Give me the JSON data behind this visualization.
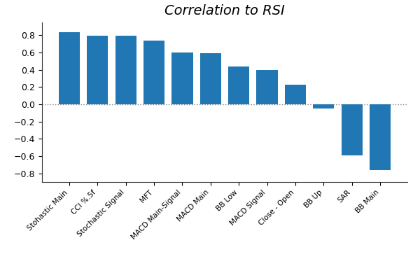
{
  "categories": [
    "Stohastic Main",
    "CCI %.5f",
    "Stochastic Signal",
    "MFT",
    "MACD Main-Signal",
    "MACD Main",
    "BB Low",
    "MACD Signal",
    "Close - Open",
    "BB Up",
    "SAR",
    "BB Main"
  ],
  "values": [
    0.835,
    0.795,
    0.795,
    0.735,
    0.6,
    0.59,
    0.435,
    0.4,
    0.23,
    -0.045,
    -0.595,
    -0.76
  ],
  "bar_color": "#2077b4",
  "title": "Correlation to RSI",
  "title_fontsize": 14,
  "title_style": "italic",
  "ylim": [
    -0.9,
    0.95
  ],
  "yticks": [
    -0.8,
    -0.6,
    -0.4,
    -0.2,
    0.0,
    0.2,
    0.4,
    0.6,
    0.8
  ],
  "background_color": "#ffffff",
  "figsize": [
    6.0,
    4.0
  ],
  "dpi": 100,
  "xtick_fontsize": 7.5,
  "ytick_fontsize": 9
}
